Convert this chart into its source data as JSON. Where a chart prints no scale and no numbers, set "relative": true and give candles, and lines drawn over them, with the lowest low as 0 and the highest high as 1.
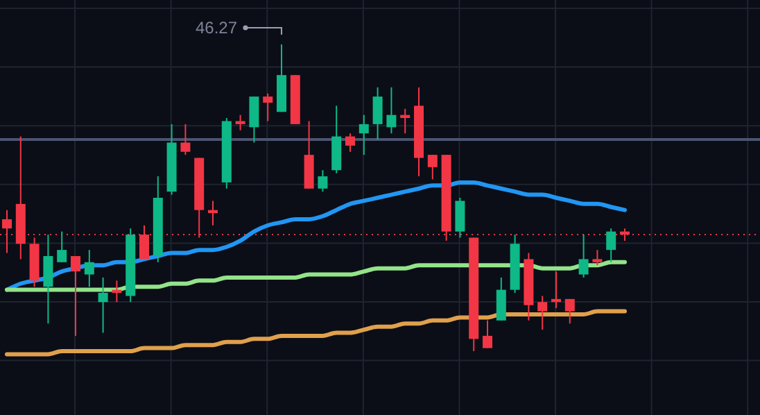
{
  "chart_data": {
    "type": "candlestick",
    "relative": true,
    "grid": true,
    "categories": [
      null,
      null,
      null,
      null,
      null,
      null,
      null,
      null,
      null,
      null,
      null,
      null,
      null,
      null,
      null,
      null,
      null,
      null,
      null,
      null,
      null,
      null,
      null,
      null,
      null,
      null,
      null,
      null,
      null,
      null,
      null,
      null,
      null,
      null,
      null,
      null,
      null,
      null,
      null,
      null,
      null,
      null,
      null,
      null,
      null,
      null
    ],
    "ohlc": [
      [
        0.43,
        0.46,
        0.32,
        0.4
      ],
      [
        0.48,
        0.7,
        0.3,
        0.35
      ],
      [
        0.35,
        0.37,
        0.21,
        0.23
      ],
      [
        0.21,
        0.38,
        0.09,
        0.31
      ],
      [
        0.29,
        0.39,
        0.29,
        0.33
      ],
      [
        0.31,
        0.31,
        0.05,
        0.26
      ],
      [
        0.25,
        0.33,
        0.21,
        0.29
      ],
      [
        0.16,
        0.24,
        0.06,
        0.19
      ],
      [
        0.2,
        0.23,
        0.16,
        0.19
      ],
      [
        0.18,
        0.4,
        0.16,
        0.38
      ],
      [
        0.38,
        0.41,
        0.3,
        0.3
      ],
      [
        0.31,
        0.57,
        0.29,
        0.5
      ],
      [
        0.52,
        0.74,
        0.51,
        0.68
      ],
      [
        0.68,
        0.74,
        0.64,
        0.65
      ],
      [
        0.63,
        0.63,
        0.37,
        0.46
      ],
      [
        0.46,
        0.49,
        0.41,
        0.45
      ],
      [
        0.55,
        0.76,
        0.53,
        0.75
      ],
      [
        0.75,
        0.77,
        0.72,
        0.74
      ],
      [
        0.73,
        0.83,
        0.68,
        0.83
      ],
      [
        0.83,
        0.84,
        0.75,
        0.81
      ],
      [
        0.78,
        1,
        0.78,
        0.9
      ],
      [
        0.9,
        0.9,
        0.74,
        0.74
      ],
      [
        0.64,
        0.75,
        0.53,
        0.53
      ],
      [
        0.53,
        0.59,
        0.52,
        0.57
      ],
      [
        0.59,
        0.8,
        0.58,
        0.7
      ],
      [
        0.7,
        0.71,
        0.65,
        0.67
      ],
      [
        0.71,
        0.77,
        0.64,
        0.74
      ],
      [
        0.74,
        0.86,
        0.69,
        0.83
      ],
      [
        0.73,
        0.86,
        0.71,
        0.77
      ],
      [
        0.77,
        0.79,
        0.71,
        0.76
      ],
      [
        0.8,
        0.86,
        0.57,
        0.63
      ],
      [
        0.64,
        0.64,
        0.56,
        0.6
      ],
      [
        0.64,
        0.64,
        0.36,
        0.39
      ],
      [
        0.39,
        0.5,
        0.37,
        0.49
      ],
      [
        0.37,
        0.37,
        0,
        0.04
      ],
      [
        0.05,
        0.1,
        0.01,
        0.01
      ],
      [
        0.1,
        0.24,
        0.1,
        0.2
      ],
      [
        0.2,
        0.38,
        0.19,
        0.35
      ],
      [
        0.3,
        0.32,
        0.1,
        0.15
      ],
      [
        0.16,
        0.18,
        0.07,
        0.13
      ],
      [
        0.17,
        0.26,
        0.14,
        0.16
      ],
      [
        0.17,
        0.17,
        0.09,
        0.13
      ],
      [
        0.25,
        0.38,
        0.24,
        0.3
      ],
      [
        0.3,
        0.33,
        0.28,
        0.29
      ],
      [
        0.33,
        0.4,
        0.29,
        0.39
      ],
      [
        0.39,
        0.4,
        0.36,
        0.38
      ]
    ],
    "colors": [
      "#f23645",
      "#f23645",
      "#f23645",
      "#0fb887",
      "#0fb887",
      "#f23645",
      "#0fb887",
      "#0fb887",
      "#f23645",
      "#0fb887",
      "#f23645",
      "#0fb887",
      "#0fb887",
      "#f23645",
      "#f23645",
      "#f23645",
      "#0fb887",
      "#f23645",
      "#0fb887",
      "#f23645",
      "#0fb887",
      "#f23645",
      "#f23645",
      "#0fb887",
      "#0fb887",
      "#f23645",
      "#0fb887",
      "#0fb887",
      "#0fb887",
      "#f23645",
      "#f23645",
      "#f23645",
      "#f23645",
      "#0fb887",
      "#f23645",
      "#f23645",
      "#0fb887",
      "#0fb887",
      "#f23645",
      "#f23645",
      "#f23645",
      "#f23645",
      "#0fb887",
      "#f23645",
      "#0fb887",
      "#f23645"
    ],
    "series": [
      {
        "type": "line",
        "color": "#2196f3",
        "values": [
          0.2,
          0.22,
          0.23,
          0.24,
          0.26,
          0.27,
          0.28,
          0.28,
          0.29,
          0.29,
          0.3,
          0.31,
          0.32,
          0.32,
          0.33,
          0.33,
          0.34,
          0.36,
          0.39,
          0.41,
          0.42,
          0.43,
          0.43,
          0.44,
          0.46,
          0.48,
          0.49,
          0.5,
          0.51,
          0.52,
          0.53,
          0.54,
          0.54,
          0.55,
          0.55,
          0.54,
          0.53,
          0.52,
          0.51,
          0.51,
          0.5,
          0.49,
          0.48,
          0.48,
          0.47,
          0.46
        ]
      },
      {
        "type": "line",
        "color": "#93e38a",
        "values": [
          0.2,
          0.2,
          0.2,
          0.2,
          0.2,
          0.2,
          0.2,
          0.2,
          0.2,
          0.21,
          0.21,
          0.21,
          0.22,
          0.22,
          0.23,
          0.23,
          0.24,
          0.24,
          0.24,
          0.24,
          0.24,
          0.24,
          0.25,
          0.25,
          0.25,
          0.25,
          0.26,
          0.27,
          0.27,
          0.27,
          0.28,
          0.28,
          0.28,
          0.28,
          0.28,
          0.28,
          0.28,
          0.28,
          0.28,
          0.27,
          0.27,
          0.27,
          0.28,
          0.28,
          0.29,
          0.29
        ]
      },
      {
        "type": "line",
        "color": "#e0a04c",
        "values": [
          -0.01,
          -0.01,
          -0.01,
          -0.01,
          0,
          0,
          0,
          0,
          0,
          0,
          0.01,
          0.01,
          0.01,
          0.02,
          0.02,
          0.02,
          0.03,
          0.03,
          0.04,
          0.04,
          0.05,
          0.05,
          0.05,
          0.05,
          0.06,
          0.06,
          0.07,
          0.08,
          0.08,
          0.09,
          0.09,
          0.1,
          0.1,
          0.11,
          0.11,
          0.11,
          0.12,
          0.12,
          0.12,
          0.12,
          0.12,
          0.12,
          0.12,
          0.13,
          0.13,
          0.13
        ]
      }
    ],
    "ref_lines": [
      {
        "axis": "y",
        "value": 0.69,
        "color": "#4c5470",
        "line_style": "solid"
      },
      {
        "axis": "y",
        "value": 0.38,
        "color": "#f23645",
        "line_style": "dotted"
      }
    ],
    "annotations": [
      "46.27"
    ]
  }
}
